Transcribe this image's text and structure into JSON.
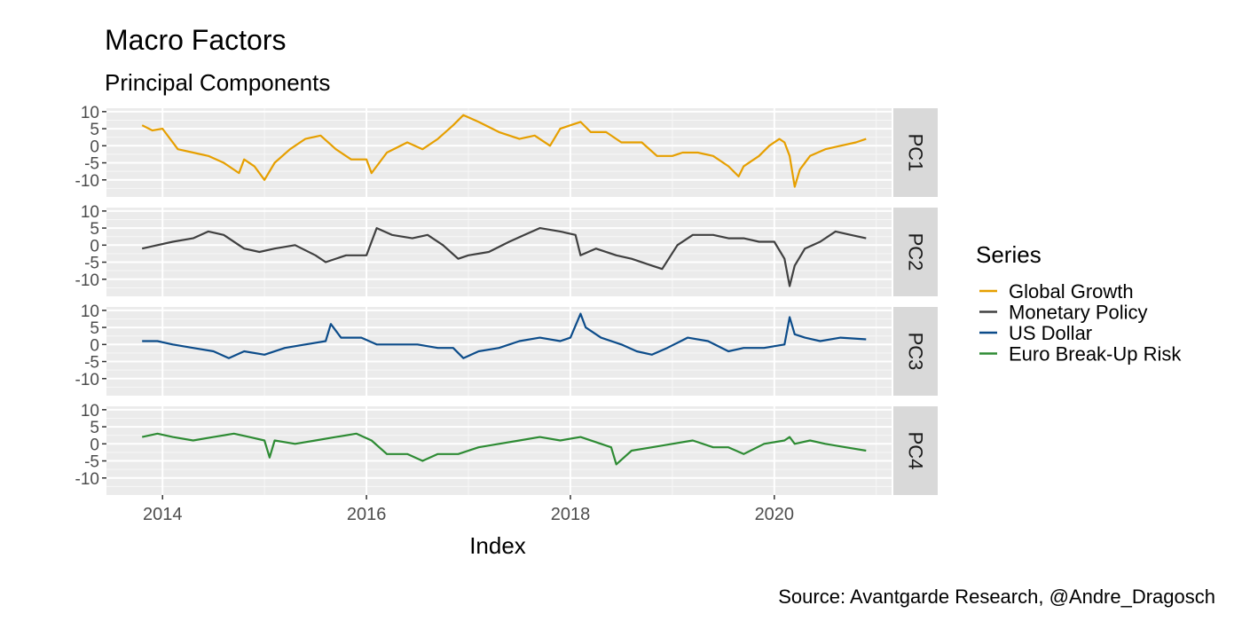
{
  "title": "Macro Factors",
  "subtitle": "Principal Components",
  "caption": "Source: Avantgarde Research, @Andre_Dragosch",
  "chart_data": {
    "type": "line",
    "title": "Macro Factors",
    "subtitle": "Principal Components",
    "xlabel": "Index",
    "ylabel": "",
    "xlim": [
      2013.45,
      2021.15
    ],
    "ylim": [
      -15,
      11
    ],
    "x_ticks": [
      2014,
      2016,
      2018,
      2020
    ],
    "x_tick_labels": [
      "2014",
      "2016",
      "2018",
      "2020"
    ],
    "y_ticks": [
      10,
      5,
      0,
      -5,
      -10
    ],
    "y_tick_labels": [
      "10",
      "5",
      "0",
      "-5",
      "-10"
    ],
    "grid": true,
    "legend": {
      "title": "Series",
      "position": "right"
    },
    "facets": [
      "PC1",
      "PC2",
      "PC3",
      "PC4"
    ],
    "series": [
      {
        "name": "Global Growth",
        "facet": "PC1",
        "color": "#E69F00",
        "x": [
          2013.8,
          2013.9,
          2014.0,
          2014.15,
          2014.3,
          2014.45,
          2014.6,
          2014.75,
          2014.8,
          2014.9,
          2015.0,
          2015.1,
          2015.25,
          2015.4,
          2015.55,
          2015.7,
          2015.85,
          2016.0,
          2016.05,
          2016.2,
          2016.4,
          2016.55,
          2016.7,
          2016.85,
          2016.95,
          2017.1,
          2017.3,
          2017.5,
          2017.65,
          2017.8,
          2017.9,
          2018.0,
          2018.1,
          2018.2,
          2018.35,
          2018.5,
          2018.7,
          2018.85,
          2019.0,
          2019.1,
          2019.25,
          2019.4,
          2019.55,
          2019.65,
          2019.7,
          2019.85,
          2019.95,
          2020.05,
          2020.1,
          2020.15,
          2020.2,
          2020.25,
          2020.35,
          2020.5,
          2020.65,
          2020.8,
          2020.9
        ],
        "values": [
          6,
          4.5,
          5,
          -1,
          -2,
          -3,
          -5,
          -8,
          -4,
          -6,
          -10,
          -5,
          -1,
          2,
          3,
          -1,
          -4,
          -4,
          -8,
          -2,
          1,
          -1,
          2,
          6,
          9,
          7,
          4,
          2,
          3,
          0,
          5,
          6,
          7,
          4,
          4,
          1,
          1,
          -3,
          -3,
          -2,
          -2,
          -3,
          -6,
          -9,
          -6,
          -3,
          0,
          2,
          1,
          -3,
          -12,
          -7,
          -3,
          -1,
          0,
          1,
          2
        ]
      },
      {
        "name": "Monetary Policy",
        "facet": "PC2",
        "color": "#404040",
        "x": [
          2013.8,
          2013.95,
          2014.1,
          2014.3,
          2014.45,
          2014.6,
          2014.8,
          2014.95,
          2015.1,
          2015.3,
          2015.5,
          2015.6,
          2015.8,
          2016.0,
          2016.1,
          2016.25,
          2016.45,
          2016.6,
          2016.75,
          2016.9,
          2017.0,
          2017.2,
          2017.4,
          2017.55,
          2017.7,
          2017.9,
          2018.05,
          2018.1,
          2018.25,
          2018.45,
          2018.6,
          2018.8,
          2018.9,
          2019.05,
          2019.2,
          2019.4,
          2019.55,
          2019.7,
          2019.85,
          2020.0,
          2020.1,
          2020.15,
          2020.2,
          2020.3,
          2020.45,
          2020.6,
          2020.75,
          2020.9
        ],
        "values": [
          -1,
          0,
          1,
          2,
          4,
          3,
          -1,
          -2,
          -1,
          0,
          -3,
          -5,
          -3,
          -3,
          5,
          3,
          2,
          3,
          0,
          -4,
          -3,
          -2,
          1,
          3,
          5,
          4,
          3,
          -3,
          -1,
          -3,
          -4,
          -6,
          -7,
          0,
          3,
          3,
          2,
          2,
          1,
          1,
          -4,
          -12,
          -6,
          -1,
          1,
          4,
          3,
          2
        ]
      },
      {
        "name": "US Dollar",
        "facet": "PC3",
        "color": "#0C4C8A",
        "x": [
          2013.8,
          2013.95,
          2014.1,
          2014.3,
          2014.5,
          2014.65,
          2014.8,
          2015.0,
          2015.2,
          2015.4,
          2015.6,
          2015.65,
          2015.75,
          2015.95,
          2016.1,
          2016.3,
          2016.5,
          2016.7,
          2016.85,
          2016.95,
          2017.1,
          2017.3,
          2017.5,
          2017.7,
          2017.9,
          2018.0,
          2018.1,
          2018.15,
          2018.3,
          2018.5,
          2018.65,
          2018.8,
          2018.95,
          2019.15,
          2019.35,
          2019.55,
          2019.7,
          2019.9,
          2020.1,
          2020.15,
          2020.2,
          2020.3,
          2020.45,
          2020.65,
          2020.9
        ],
        "values": [
          1,
          1,
          0,
          -1,
          -2,
          -4,
          -2,
          -3,
          -1,
          0,
          1,
          6,
          2,
          2,
          0,
          0,
          0,
          -1,
          -1,
          -4,
          -2,
          -1,
          1,
          2,
          1,
          2,
          9,
          5,
          2,
          0,
          -2,
          -3,
          -1,
          2,
          1,
          -2,
          -1,
          -1,
          0,
          8,
          3,
          2,
          1,
          2,
          1.5
        ]
      },
      {
        "name": "Euro Break-Up Risk",
        "facet": "PC4",
        "color": "#2E8B34",
        "x": [
          2013.8,
          2013.95,
          2014.1,
          2014.3,
          2014.5,
          2014.7,
          2014.85,
          2015.0,
          2015.05,
          2015.1,
          2015.3,
          2015.5,
          2015.7,
          2015.9,
          2016.05,
          2016.2,
          2016.4,
          2016.55,
          2016.7,
          2016.9,
          2017.1,
          2017.3,
          2017.5,
          2017.7,
          2017.9,
          2018.1,
          2018.3,
          2018.4,
          2018.45,
          2018.6,
          2018.8,
          2019.0,
          2019.2,
          2019.4,
          2019.55,
          2019.7,
          2019.9,
          2020.1,
          2020.15,
          2020.2,
          2020.35,
          2020.5,
          2020.7,
          2020.9
        ],
        "values": [
          2,
          3,
          2,
          1,
          2,
          3,
          2,
          1,
          -4,
          1,
          0,
          1,
          2,
          3,
          1,
          -3,
          -3,
          -5,
          -3,
          -3,
          -1,
          0,
          1,
          2,
          1,
          2,
          0,
          -1,
          -6,
          -2,
          -1,
          0,
          1,
          -1,
          -1,
          -3,
          0,
          1,
          2,
          0,
          1,
          0,
          -1,
          -2
        ]
      }
    ]
  }
}
